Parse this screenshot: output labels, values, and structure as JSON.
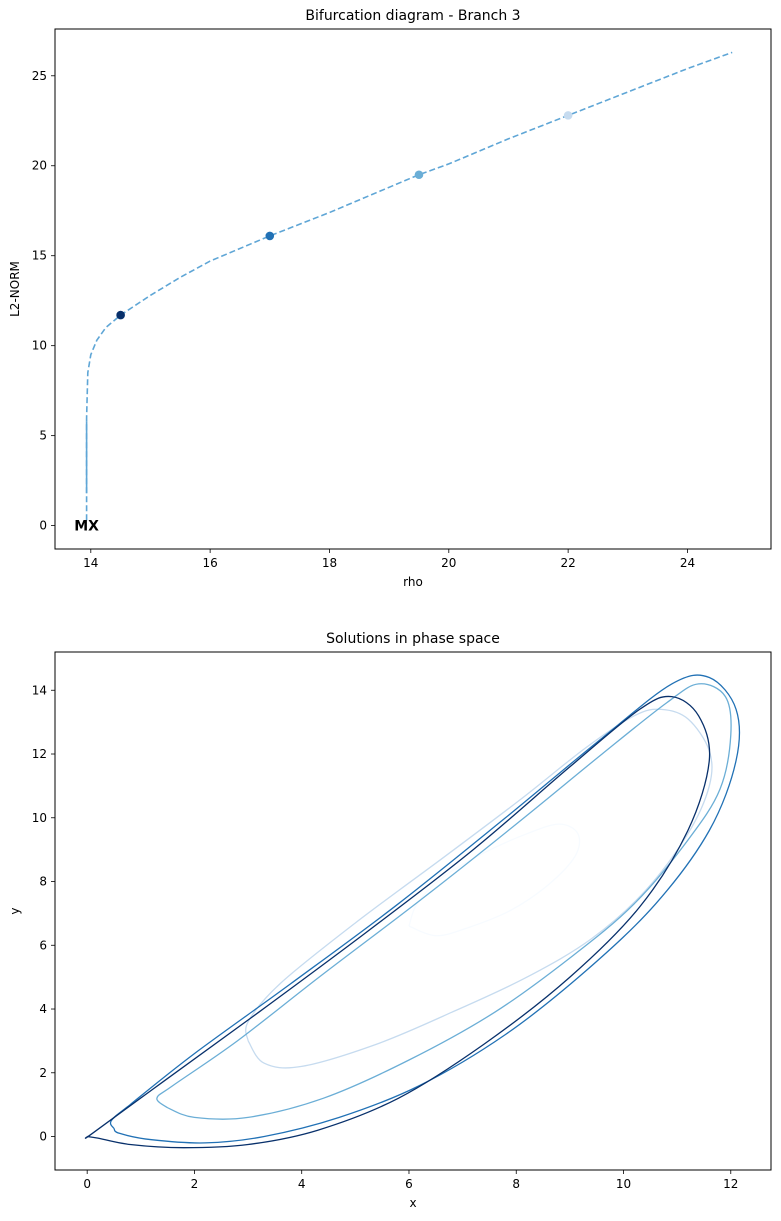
{
  "chart_data": [
    {
      "type": "line",
      "title": "Bifurcation diagram - Branch 3",
      "xlabel": "rho",
      "ylabel": "L2-NORM",
      "xlim": [
        13.4,
        25.4
      ],
      "ylim": [
        -1.3,
        27.6
      ],
      "xticks": [
        14,
        16,
        18,
        20,
        22,
        24
      ],
      "yticks": [
        0,
        5,
        10,
        15,
        20,
        25
      ],
      "grid": false,
      "series": [
        {
          "style": "solid",
          "color": "#5fa6d6",
          "x": [
            13.93,
            13.93
          ],
          "y": [
            1.8,
            5.8
          ]
        },
        {
          "style": "dashed",
          "color": "#5fa6d6",
          "x": [
            13.93,
            13.93,
            13.95,
            14.0,
            14.1,
            14.25,
            14.5,
            15.0,
            15.5,
            16.0,
            17.0,
            18.0,
            19.0,
            19.5,
            20.0,
            21.0,
            22.0,
            23.0,
            24.0,
            24.75
          ],
          "y": [
            0.3,
            6.0,
            8.5,
            9.5,
            10.3,
            11.0,
            11.7,
            12.8,
            13.8,
            14.7,
            16.1,
            17.4,
            18.8,
            19.5,
            20.1,
            21.5,
            22.8,
            24.1,
            25.4,
            26.3
          ]
        }
      ],
      "points": [
        {
          "x": 14.5,
          "y": 11.7,
          "color": "#08306b"
        },
        {
          "x": 17.0,
          "y": 16.1,
          "color": "#2171b5"
        },
        {
          "x": 19.5,
          "y": 19.5,
          "color": "#6baed6"
        },
        {
          "x": 22.0,
          "y": 22.8,
          "color": "#c6dbef"
        }
      ],
      "annotations": [
        {
          "text": "MX",
          "x": 13.93,
          "y": 0.0
        }
      ]
    },
    {
      "type": "line",
      "title": "Solutions in phase space",
      "xlabel": "x",
      "ylabel": "y",
      "xlim": [
        -0.6,
        12.75
      ],
      "ylim": [
        -1.05,
        15.2
      ],
      "xticks": [
        0,
        2,
        4,
        6,
        8,
        10,
        12
      ],
      "yticks": [
        0,
        2,
        4,
        6,
        8,
        10,
        12,
        14
      ],
      "grid": false,
      "orbits": [
        {
          "color": "#f7fbff",
          "points": [
            [
              6.0,
              6.6
            ],
            [
              6.15,
              7.3
            ],
            [
              6.6,
              8.1
            ],
            [
              7.4,
              8.9
            ],
            [
              8.2,
              9.5
            ],
            [
              8.8,
              9.8
            ],
            [
              9.15,
              9.5
            ],
            [
              9.1,
              8.8
            ],
            [
              8.6,
              7.9
            ],
            [
              7.9,
              7.1
            ],
            [
              7.1,
              6.55
            ],
            [
              6.5,
              6.3
            ],
            [
              6.0,
              6.6
            ]
          ]
        },
        {
          "color": "#c6dbef",
          "points": [
            [
              3.0,
              3.0
            ],
            [
              3.0,
              3.6
            ],
            [
              3.6,
              4.8
            ],
            [
              5.0,
              6.7
            ],
            [
              6.6,
              8.7
            ],
            [
              8.1,
              10.6
            ],
            [
              9.3,
              12.2
            ],
            [
              10.2,
              13.2
            ],
            [
              10.7,
              13.4
            ],
            [
              11.2,
              13.1
            ],
            [
              11.6,
              12.1
            ],
            [
              11.6,
              11.0
            ],
            [
              11.2,
              9.5
            ],
            [
              10.4,
              7.7
            ],
            [
              9.4,
              6.2
            ],
            [
              8.2,
              5.0
            ],
            [
              6.8,
              3.9
            ],
            [
              5.4,
              2.9
            ],
            [
              4.0,
              2.2
            ],
            [
              3.3,
              2.3
            ],
            [
              3.0,
              3.0
            ]
          ]
        },
        {
          "color": "#6baed6",
          "points": [
            [
              1.5,
              0.9
            ],
            [
              1.3,
              1.2
            ],
            [
              1.6,
              1.6
            ],
            [
              2.8,
              3.0
            ],
            [
              4.4,
              5.1
            ],
            [
              6.2,
              7.4
            ],
            [
              8.0,
              9.8
            ],
            [
              9.6,
              12.0
            ],
            [
              10.8,
              13.6
            ],
            [
              11.4,
              14.2
            ],
            [
              11.9,
              13.8
            ],
            [
              12.0,
              12.6
            ],
            [
              11.8,
              10.9
            ],
            [
              11.2,
              9.3
            ],
            [
              10.2,
              7.3
            ],
            [
              9.0,
              5.6
            ],
            [
              7.6,
              3.9
            ],
            [
              6.0,
              2.4
            ],
            [
              4.4,
              1.2
            ],
            [
              3.0,
              0.6
            ],
            [
              2.0,
              0.6
            ],
            [
              1.5,
              0.9
            ]
          ]
        },
        {
          "color": "#2171b5",
          "points": [
            [
              0.5,
              0.25
            ],
            [
              0.45,
              0.5
            ],
            [
              0.8,
              1.0
            ],
            [
              2.0,
              2.6
            ],
            [
              3.8,
              4.8
            ],
            [
              5.8,
              7.3
            ],
            [
              7.8,
              10.0
            ],
            [
              9.6,
              12.5
            ],
            [
              10.9,
              14.2
            ],
            [
              11.6,
              14.4
            ],
            [
              12.1,
              13.4
            ],
            [
              12.1,
              11.8
            ],
            [
              11.6,
              9.6
            ],
            [
              10.6,
              7.3
            ],
            [
              9.3,
              5.2
            ],
            [
              7.8,
              3.2
            ],
            [
              6.2,
              1.6
            ],
            [
              4.7,
              0.6
            ],
            [
              3.3,
              0.0
            ],
            [
              2.2,
              -0.2
            ],
            [
              1.2,
              -0.1
            ],
            [
              0.6,
              0.1
            ],
            [
              0.5,
              0.25
            ]
          ]
        },
        {
          "color": "#08306b",
          "points": [
            [
              0.0,
              0.0
            ],
            [
              0.1,
              0.1
            ],
            [
              1.4,
              1.7
            ],
            [
              3.2,
              3.9
            ],
            [
              5.2,
              6.4
            ],
            [
              7.2,
              9.0
            ],
            [
              9.0,
              11.6
            ],
            [
              10.3,
              13.4
            ],
            [
              10.9,
              13.8
            ],
            [
              11.4,
              13.2
            ],
            [
              11.6,
              11.8
            ],
            [
              11.2,
              9.6
            ],
            [
              10.3,
              7.2
            ],
            [
              9.0,
              5.0
            ],
            [
              7.4,
              2.9
            ],
            [
              5.8,
              1.2
            ],
            [
              4.3,
              0.2
            ],
            [
              3.0,
              -0.25
            ],
            [
              1.8,
              -0.35
            ],
            [
              0.8,
              -0.25
            ],
            [
              0.2,
              -0.05
            ],
            [
              0.0,
              0.0
            ]
          ]
        }
      ]
    }
  ]
}
